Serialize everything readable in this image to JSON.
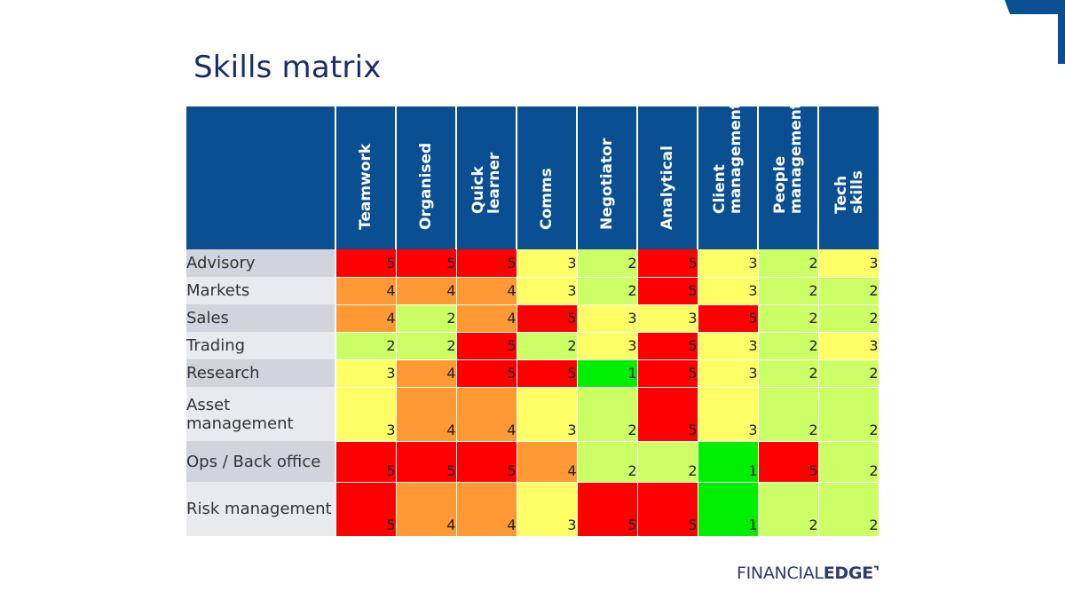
{
  "title": "Skills matrix",
  "logo": {
    "part1": "FINANCIAL",
    "part2": "EDGE",
    "mark": "⌝"
  },
  "colors": {
    "header": "#0b4f93",
    "1": "#00ee00",
    "2": "#ccff66",
    "3": "#ffff66",
    "4": "#ff9933",
    "5": "#ff0000"
  },
  "chart_data": {
    "type": "heatmap",
    "title": "Skills matrix",
    "columns": [
      "Teamwork",
      "Organised",
      "Quick learner",
      "Comms",
      "Negotiator",
      "Analytical",
      "Client\nmanagement",
      "People\nmanagement",
      "Tech skills"
    ],
    "rows": [
      {
        "label": "Advisory",
        "values": [
          5,
          5,
          5,
          3,
          2,
          5,
          3,
          2,
          3
        ]
      },
      {
        "label": "Markets",
        "values": [
          4,
          4,
          4,
          3,
          2,
          5,
          3,
          2,
          2
        ]
      },
      {
        "label": "Sales",
        "values": [
          4,
          2,
          4,
          5,
          3,
          3,
          5,
          2,
          2
        ]
      },
      {
        "label": "Trading",
        "values": [
          2,
          2,
          5,
          2,
          3,
          5,
          3,
          2,
          3
        ]
      },
      {
        "label": "Research",
        "values": [
          3,
          4,
          5,
          5,
          1,
          5,
          3,
          2,
          2
        ]
      },
      {
        "label": "Asset management",
        "values": [
          3,
          4,
          4,
          3,
          2,
          5,
          3,
          2,
          2
        ]
      },
      {
        "label": "Ops / Back office",
        "values": [
          5,
          5,
          5,
          4,
          2,
          2,
          1,
          5,
          2
        ]
      },
      {
        "label": "Risk management",
        "values": [
          5,
          4,
          4,
          3,
          5,
          5,
          1,
          2,
          2
        ]
      }
    ]
  }
}
